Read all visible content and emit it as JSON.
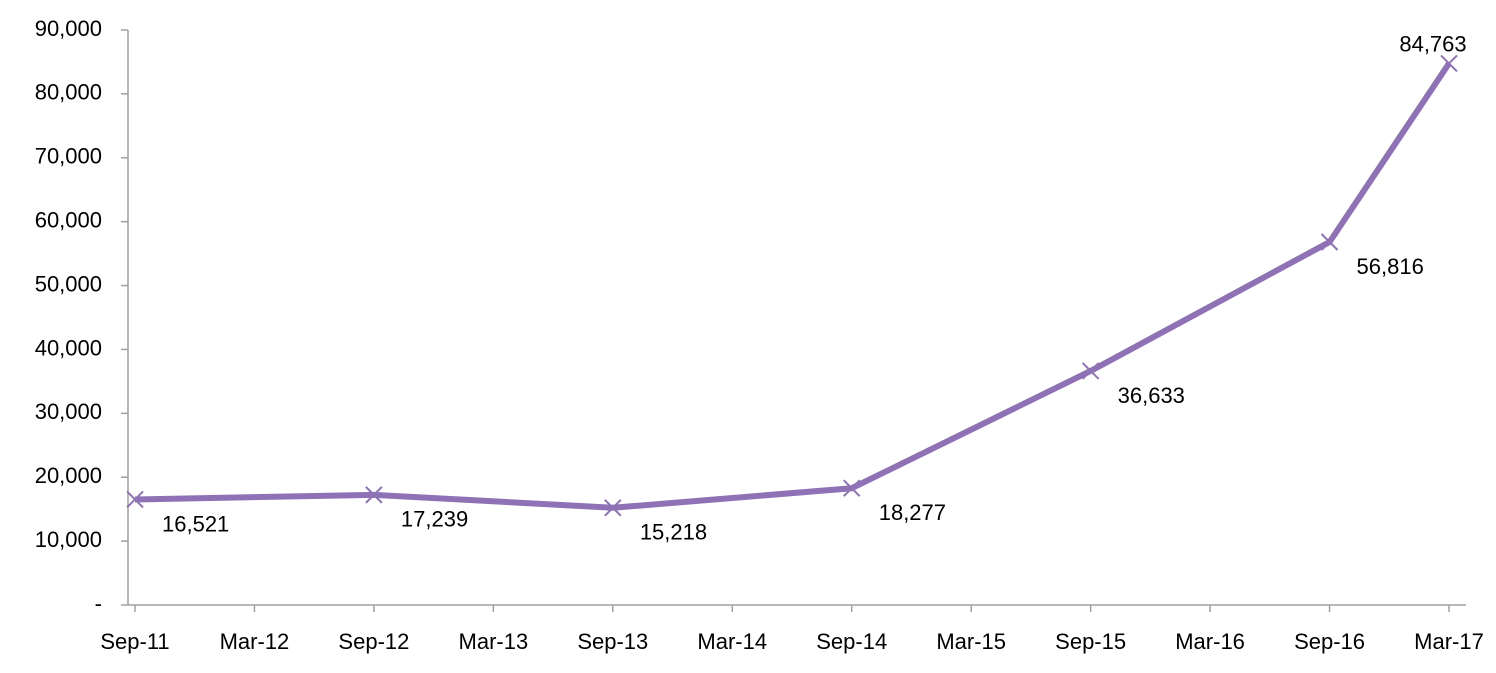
{
  "chart_data": {
    "type": "line",
    "x": [
      "Sep-11",
      "Sep-12",
      "Sep-13",
      "Sep-14",
      "Sep-15",
      "Sep-16",
      "Mar-17"
    ],
    "series": [
      {
        "color": "#8e72b5",
        "values": [
          16521,
          17239,
          15218,
          18277,
          36633,
          56816,
          84763
        ],
        "value_labels": [
          "16,521",
          "17,239",
          "15,218",
          "18,277",
          "36,633",
          "56,816",
          "84,763"
        ]
      }
    ],
    "xticks": [
      "Sep-11",
      "Mar-12",
      "Sep-12",
      "Mar-13",
      "Sep-13",
      "Mar-14",
      "Sep-14",
      "Mar-15",
      "Sep-15",
      "Mar-16",
      "Sep-16",
      "Mar-17"
    ],
    "ylim": [
      0,
      90000
    ],
    "yticks": [
      {
        "value": 0,
        "label": "-"
      },
      {
        "value": 10000,
        "label": "10,000"
      },
      {
        "value": 20000,
        "label": "20,000"
      },
      {
        "value": 30000,
        "label": "30,000"
      },
      {
        "value": 40000,
        "label": "40,000"
      },
      {
        "value": 50000,
        "label": "50,000"
      },
      {
        "value": 60000,
        "label": "60,000"
      },
      {
        "value": 70000,
        "label": "70,000"
      },
      {
        "value": 80000,
        "label": "80,000"
      },
      {
        "value": 90000,
        "label": "90,000"
      }
    ],
    "grid": false
  }
}
